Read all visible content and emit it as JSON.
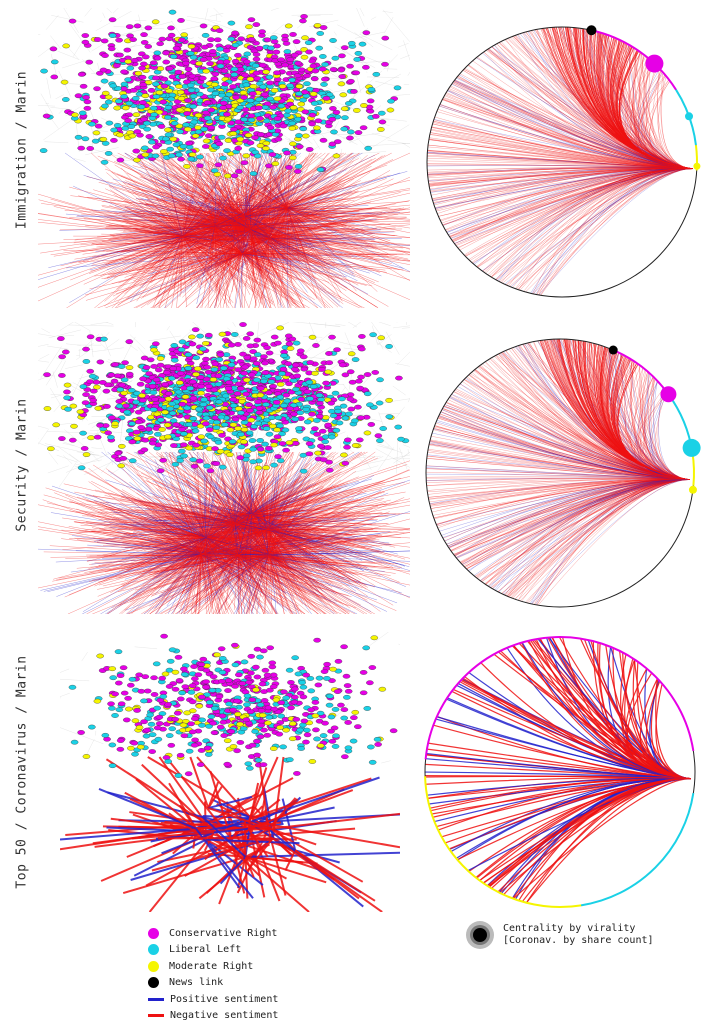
{
  "panels": [
    {
      "id": "immigration",
      "label": "Immigration / Marin"
    },
    {
      "id": "security",
      "label": "Security / Marin"
    },
    {
      "id": "coronavirus",
      "label": "Top 50 / Coronavirus / Marin"
    }
  ],
  "legend": [
    {
      "label": "Conservative Right",
      "color": "#e600e6",
      "shape": "dot"
    },
    {
      "label": "Liberal Left",
      "color": "#1ad1e6",
      "shape": "dot"
    },
    {
      "label": "Moderate Right",
      "color": "#f5f500",
      "shape": "dot"
    },
    {
      "label": "News link",
      "color": "#000000",
      "shape": "dot"
    },
    {
      "label": "Positive sentiment",
      "color": "#2222cc",
      "shape": "bar"
    },
    {
      "label": "Negative sentiment",
      "color": "#ee1111",
      "shape": "bar"
    }
  ],
  "centrality": {
    "line1": "Centrality by virality",
    "line2": "[Coronav. by share count]"
  },
  "colors": {
    "conservative": "#e600e6",
    "liberal": "#1ad1e6",
    "moderate": "#f5f500",
    "news": "#000000",
    "positive": "#2222cc",
    "negative": "#ee1111"
  }
}
